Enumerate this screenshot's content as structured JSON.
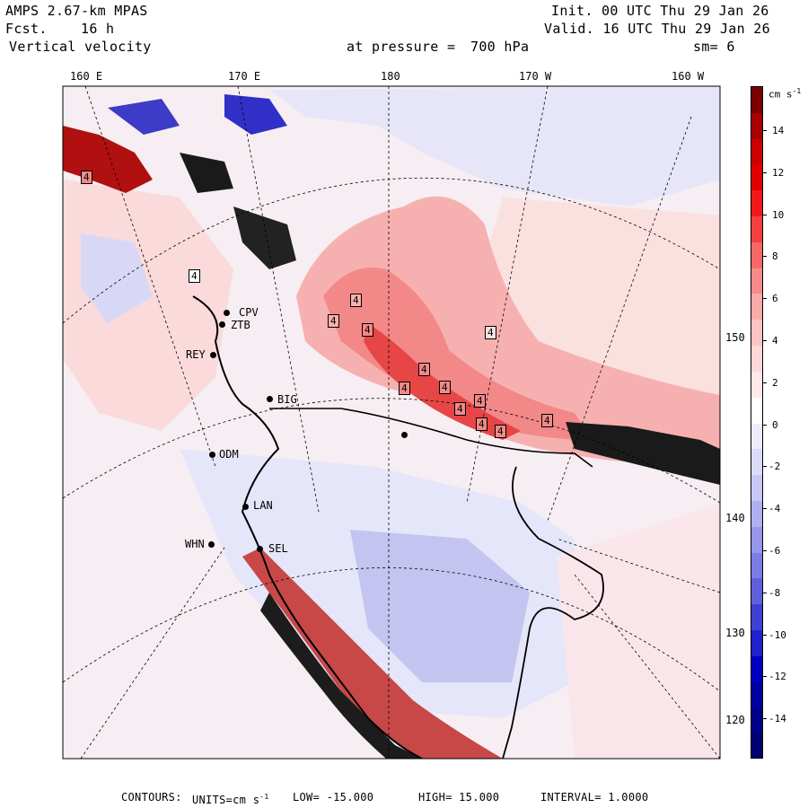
{
  "header": {
    "model": "AMPS 2.67-km MPAS",
    "forecast_label": "Fcst.",
    "forecast_value": "16 h",
    "field": "Vertical velocity",
    "init": "Init. 00 UTC Thu 29 Jan 26",
    "valid": "Valid. 16 UTC Thu 29 Jan 26",
    "pressure_label": "at pressure =",
    "pressure_value": "700 hPa",
    "smoothing": "sm= 6"
  },
  "longitude_labels_top": [
    "160 E",
    "170 E",
    "180",
    "170 W",
    "160 W"
  ],
  "longitude_labels_right": [
    "150 W",
    "140 W",
    "130 W",
    "120 W"
  ],
  "stations": [
    "CPV",
    "ZTB",
    "REY",
    "BIG",
    "ODM",
    "LAN",
    "WHN",
    "SEL"
  ],
  "contour_labels": [
    "4",
    "4",
    "4",
    "4",
    "4",
    "4",
    "4",
    "4",
    "4",
    "4",
    "4",
    "4",
    "4",
    "4"
  ],
  "colorbar": {
    "units_label": "cm s",
    "units_exp": "-1",
    "tick_labels": [
      "14",
      "12",
      "10",
      "8",
      "6",
      "4",
      "2",
      "0",
      "-2",
      "-4",
      "-6",
      "-8",
      "-10",
      "-12",
      "-14"
    ],
    "colors": [
      "#7a0000",
      "#a80000",
      "#cc0000",
      "#e00000",
      "#f01818",
      "#f54040",
      "#f86868",
      "#fa8a8a",
      "#fbaaaa",
      "#fcc4c4",
      "#fdd8d8",
      "#fee8e8",
      "#ffffff",
      "#ececfd",
      "#dcdcfa",
      "#c8c8f6",
      "#b0b0f0",
      "#9696ea",
      "#7c7ce4",
      "#6060dc",
      "#4040d4",
      "#2020cc",
      "#0000c0",
      "#0000a0",
      "#000088",
      "#000070"
    ]
  },
  "footer": {
    "contours": "CONTOURS:",
    "units": "UNITS=cm s",
    "units_exp": "-1",
    "low": "LOW= -15.000",
    "high": "HIGH= 15.000",
    "interval": "INTERVAL= 1.0000"
  },
  "colors": {
    "positive_light": "#fbdede",
    "positive_mid": "#f7aaaa",
    "positive_strong": "#ef6262",
    "negative_light": "#e4e4fa",
    "negative_mid": "#b8b8ee",
    "negative_strong": "#3030d0",
    "background": "#f6eef2"
  }
}
